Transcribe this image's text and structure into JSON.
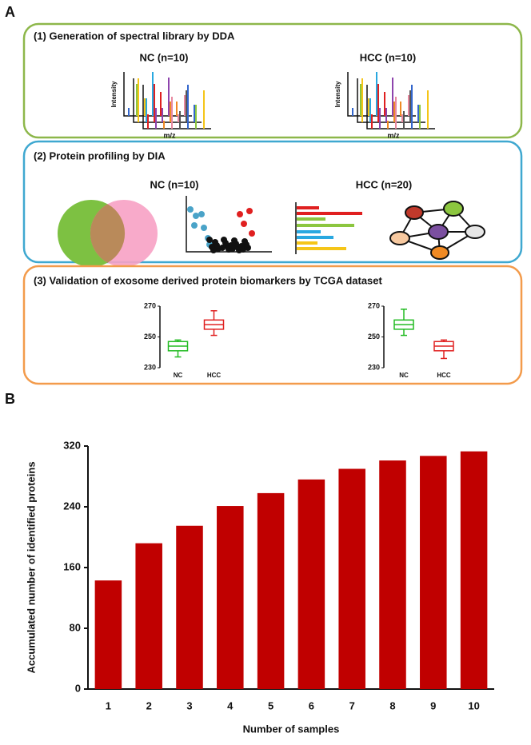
{
  "panel_labels": [
    "A",
    "B"
  ],
  "panel_a": {
    "sections": [
      {
        "title": "(1) Generation of spectral library by DDA",
        "groups": [
          "NC (n=10)",
          "HCC (n=10)"
        ],
        "x_label": "m/z",
        "y_label": "Intensity"
      },
      {
        "title": "(2) Protein profiling by DIA",
        "groups": [
          "NC (n=10)",
          "HCC (n=20)"
        ]
      },
      {
        "title": "(3) Validation of exosome derived protein biomarkers by TCGA dataset"
      }
    ]
  },
  "chart_data": [
    {
      "type": "box",
      "categories": [
        "NC",
        "HCC"
      ],
      "ylim": [
        230,
        270
      ],
      "yticks": [
        230,
        250,
        270
      ],
      "boxes": [
        {
          "color": "#22bb22",
          "min": 237,
          "q1": 241,
          "median": 244,
          "q3": 247,
          "max": 248
        },
        {
          "color": "#e02020",
          "min": 251,
          "q1": 255,
          "median": 258,
          "q3": 261,
          "max": 267
        }
      ]
    },
    {
      "type": "box",
      "categories": [
        "NC",
        "HCC"
      ],
      "ylim": [
        230,
        270
      ],
      "yticks": [
        230,
        250,
        270
      ],
      "boxes": [
        {
          "color": "#22bb22",
          "min": 251,
          "q1": 255,
          "median": 258,
          "q3": 261,
          "max": 268
        },
        {
          "color": "#e02020",
          "min": 236,
          "q1": 241,
          "median": 244,
          "q3": 247,
          "max": 248
        }
      ]
    },
    {
      "type": "bar",
      "x_label": "Number of samples",
      "y_label": "Accumulated number of identified proteins",
      "categories": [
        "1",
        "2",
        "3",
        "4",
        "5",
        "6",
        "7",
        "8",
        "9",
        "10"
      ],
      "values": [
        143,
        192,
        215,
        241,
        258,
        276,
        290,
        301,
        307,
        313
      ],
      "color": "#c00000",
      "ylim": [
        0,
        320
      ],
      "yticks": [
        0,
        80,
        160,
        240,
        320
      ]
    }
  ]
}
